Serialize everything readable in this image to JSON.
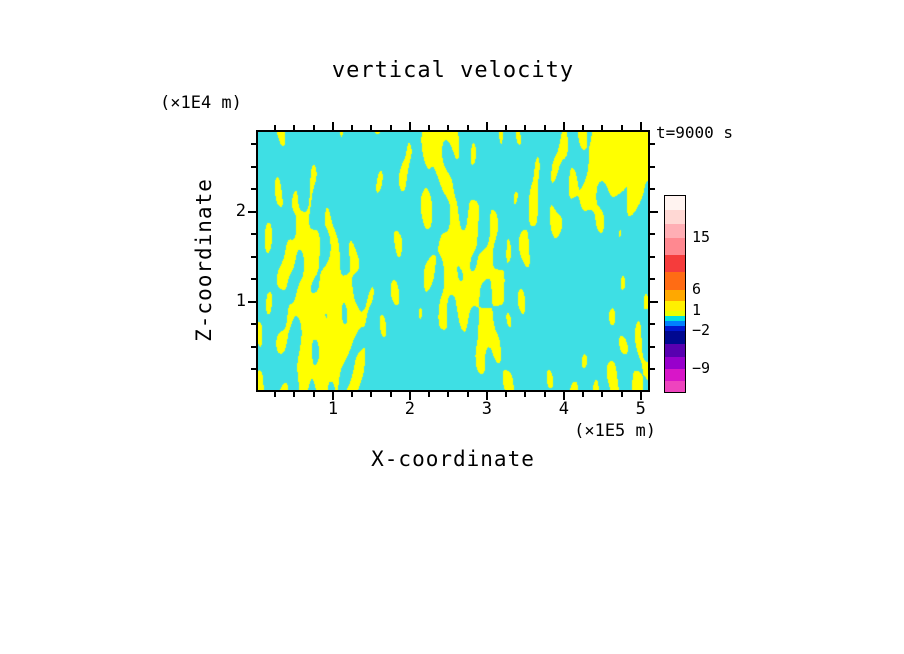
{
  "title": "vertical velocity",
  "annotations": {
    "time": "t=9000 s"
  },
  "axes": {
    "x": {
      "label": "X-coordinate",
      "unit": "(×1E5 m)",
      "ticks": [
        1,
        2,
        3,
        4,
        5
      ],
      "range": [
        0,
        5.12
      ],
      "minor_step": 0.25
    },
    "y": {
      "label": "Z-coordinate",
      "unit": "(×1E4 m)",
      "ticks": [
        1,
        2
      ],
      "range": [
        0,
        2.91
      ],
      "minor_step": 0.25
    }
  },
  "colorbar": {
    "segments": [
      {
        "color": "#FFF3F0",
        "h": 14
      },
      {
        "color": "#FFD8D4",
        "h": 14
      },
      {
        "color": "#FFAEB4",
        "h": 14
      },
      {
        "color": "#FF8890",
        "h": 17
      },
      {
        "color": "#F53C3C",
        "h": 17
      },
      {
        "color": "#FF6C14",
        "h": 18
      },
      {
        "color": "#FFA800",
        "h": 11
      },
      {
        "color": "#FFF000",
        "h": 10
      },
      {
        "color": "#E8FF00",
        "h": 5
      },
      {
        "color": "#00E0E0",
        "h": 5
      },
      {
        "color": "#0080FF",
        "h": 5
      },
      {
        "color": "#0018D0",
        "h": 5
      },
      {
        "color": "#000890",
        "h": 13
      },
      {
        "color": "#5800B0",
        "h": 13
      },
      {
        "color": "#9800CC",
        "h": 12
      },
      {
        "color": "#D816C8",
        "h": 12
      },
      {
        "color": "#EE44BE",
        "h": 11
      }
    ],
    "labels": [
      {
        "text": "15",
        "at": 42
      },
      {
        "text": "6",
        "at": 94
      },
      {
        "text": "1",
        "at": 115
      },
      {
        "text": "−2",
        "at": 135
      },
      {
        "text": "−9",
        "at": 173
      }
    ]
  },
  "chart_data": {
    "type": "heatmap",
    "title": "vertical velocity",
    "xlabel": "X-coordinate",
    "ylabel": "Z-coordinate",
    "x_units": "(×1E5 m)",
    "y_units": "(×1E4 m)",
    "x_range": [
      0,
      5.12
    ],
    "y_range": [
      0,
      2.91
    ],
    "x_ticks": [
      1,
      2,
      3,
      4,
      5
    ],
    "y_ticks": [
      1,
      2
    ],
    "time_annotation": "t=9000 s",
    "rendering": "two-tone threshold field: positive vertical velocity shown yellow, negative shown cyan",
    "positive_color": "#FFFF00",
    "negative_color": "#3EDFE4",
    "colorbar_labeled_levels": [
      15,
      6,
      1,
      -2,
      -9
    ],
    "texture": {
      "seed": 11,
      "threshold": -0.15,
      "low": {
        "n": 12,
        "kx": 0.05,
        "kz": 0.035,
        "amp": 1.0
      },
      "high": {
        "n": 28,
        "kx_min": 0.08,
        "kx_max": 0.42,
        "kz": 0.12,
        "amp": 0.5
      }
    }
  }
}
